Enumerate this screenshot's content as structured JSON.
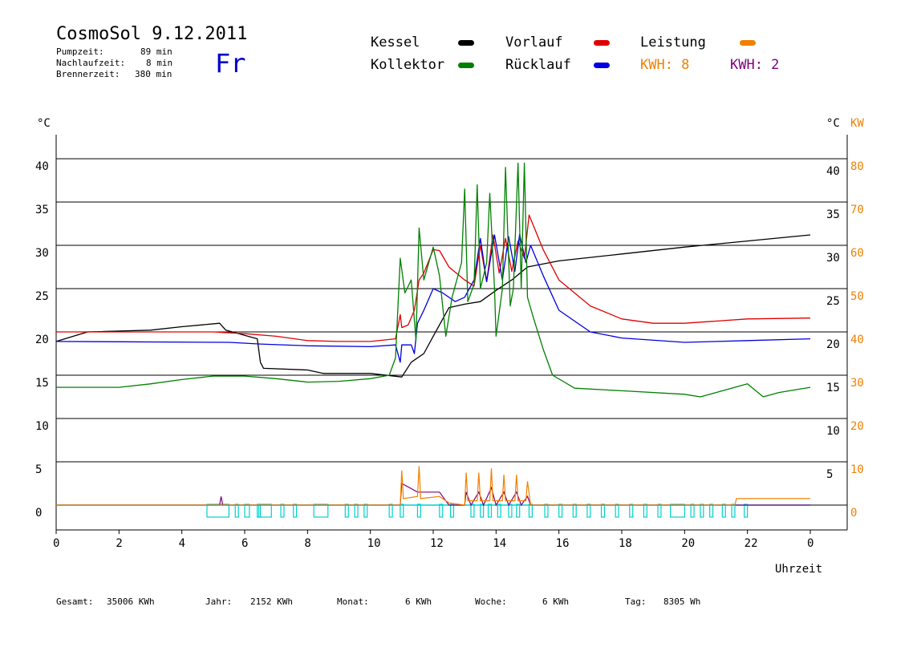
{
  "header": {
    "title": "CosmoSol 9.12.2011",
    "day": "Fr",
    "info": [
      {
        "label": "Pumpzeit:",
        "value": "89 min"
      },
      {
        "label": "Nachlaufzeit:",
        "value": "8 min"
      },
      {
        "label": "Brennerzeit:",
        "value": "380 min"
      }
    ]
  },
  "legend": {
    "kessel": {
      "label": "Kessel",
      "color": "#000000"
    },
    "vorlauf": {
      "label": "Vorlauf",
      "color": "#e00000"
    },
    "leistung": {
      "label": "Leistung",
      "color": "#f08000"
    },
    "kollektor": {
      "label": "Kollektor",
      "color": "#008000"
    },
    "ruecklauf": {
      "label": "Rücklauf",
      "color": "#0000e0"
    },
    "kwh1": {
      "label": "KWH: 8",
      "color": "#f08000"
    },
    "kwh2": {
      "label": "KWH: 2",
      "color": "#800080"
    }
  },
  "stats": [
    {
      "label": "Gesamt:",
      "value": "35006 KWh"
    },
    {
      "label": "Jahr:",
      "value": "2152 KWh"
    },
    {
      "label": "Monat:",
      "value": "6 KWh"
    },
    {
      "label": "Woche:",
      "value": "6 KWh"
    },
    {
      "label": "Tag:",
      "value": "8305 Wh"
    }
  ],
  "chart_data": {
    "type": "line",
    "xlabel": "Uhrzeit",
    "ylabel_left": "°C",
    "ylabel_right": [
      "°C",
      "KW"
    ],
    "xlim": [
      0,
      24
    ],
    "ylim": [
      -3,
      43
    ],
    "xticks": [
      "0",
      "2",
      "4",
      "6",
      "8",
      "10",
      "12",
      "14",
      "16",
      "18",
      "20",
      "22",
      "0"
    ],
    "yticks_left": [
      0,
      5,
      10,
      15,
      20,
      25,
      30,
      35,
      40
    ],
    "yticks_right_temp": [
      5,
      10,
      15,
      20,
      25,
      30,
      35,
      40
    ],
    "yticks_right_kw": [
      0,
      10,
      20,
      30,
      40,
      50,
      60,
      70,
      80
    ],
    "grid": "horizontal",
    "series": [
      {
        "name": "Kessel",
        "color": "#000000",
        "points": [
          [
            0,
            18.9
          ],
          [
            1,
            20.0
          ],
          [
            3,
            20.2
          ],
          [
            4,
            20.6
          ],
          [
            5.2,
            21.0
          ],
          [
            5.4,
            20.2
          ],
          [
            6.4,
            19.2
          ],
          [
            6.5,
            16.5
          ],
          [
            6.6,
            15.8
          ],
          [
            8,
            15.6
          ],
          [
            8.5,
            15.2
          ],
          [
            10,
            15.2
          ],
          [
            11.0,
            14.8
          ],
          [
            11.3,
            16.5
          ],
          [
            11.7,
            17.5
          ],
          [
            12,
            19.5
          ],
          [
            12.5,
            22.8
          ],
          [
            13,
            23.2
          ],
          [
            13.5,
            23.5
          ],
          [
            14,
            24.8
          ],
          [
            14.5,
            26.0
          ],
          [
            15,
            27.5
          ],
          [
            16,
            28.2
          ],
          [
            18,
            29.0
          ],
          [
            20,
            29.8
          ],
          [
            22,
            30.5
          ],
          [
            24,
            31.2
          ]
        ]
      },
      {
        "name": "Vorlauf",
        "color": "#e00000",
        "points": [
          [
            0,
            20.0
          ],
          [
            5,
            20.0
          ],
          [
            6,
            19.8
          ],
          [
            7,
            19.5
          ],
          [
            8,
            19.0
          ],
          [
            9,
            18.9
          ],
          [
            10,
            18.9
          ],
          [
            10.8,
            19.2
          ],
          [
            10.95,
            22.0
          ],
          [
            11.0,
            20.5
          ],
          [
            11.2,
            20.8
          ],
          [
            11.4,
            22.5
          ],
          [
            11.55,
            26.0
          ],
          [
            11.7,
            26.8
          ],
          [
            12,
            29.5
          ],
          [
            12.2,
            29.4
          ],
          [
            12.5,
            27.5
          ],
          [
            13,
            26.0
          ],
          [
            13.3,
            25.3
          ],
          [
            13.5,
            30.0
          ],
          [
            13.7,
            25.8
          ],
          [
            13.9,
            31.2
          ],
          [
            14.1,
            26.8
          ],
          [
            14.3,
            30.8
          ],
          [
            14.5,
            27.0
          ],
          [
            14.7,
            30.5
          ],
          [
            14.9,
            28.5
          ],
          [
            15.05,
            33.5
          ],
          [
            15.5,
            29.5
          ],
          [
            16,
            26.0
          ],
          [
            17,
            23.0
          ],
          [
            18,
            21.5
          ],
          [
            19,
            21.0
          ],
          [
            20,
            21.0
          ],
          [
            22,
            21.5
          ],
          [
            24,
            21.6
          ]
        ]
      },
      {
        "name": "Rücklauf",
        "color": "#0000e0",
        "points": [
          [
            0,
            18.9
          ],
          [
            5.5,
            18.8
          ],
          [
            6.5,
            18.6
          ],
          [
            8,
            18.4
          ],
          [
            10,
            18.3
          ],
          [
            10.8,
            18.5
          ],
          [
            10.95,
            16.5
          ],
          [
            11.0,
            18.5
          ],
          [
            11.3,
            18.5
          ],
          [
            11.4,
            17.5
          ],
          [
            11.5,
            21.0
          ],
          [
            11.7,
            22.5
          ],
          [
            12,
            25.0
          ],
          [
            12.3,
            24.5
          ],
          [
            12.7,
            23.5
          ],
          [
            13.0,
            24.0
          ],
          [
            13.3,
            26.0
          ],
          [
            13.5,
            30.8
          ],
          [
            13.7,
            25.8
          ],
          [
            13.95,
            31.2
          ],
          [
            14.2,
            26.0
          ],
          [
            14.4,
            31.0
          ],
          [
            14.6,
            27.0
          ],
          [
            14.75,
            31.3
          ],
          [
            14.95,
            28.0
          ],
          [
            15.1,
            30.0
          ],
          [
            15.5,
            26.5
          ],
          [
            16,
            22.5
          ],
          [
            17,
            20.0
          ],
          [
            18,
            19.3
          ],
          [
            20,
            18.8
          ],
          [
            22,
            19.0
          ],
          [
            24,
            19.2
          ]
        ]
      },
      {
        "name": "Kollektor",
        "color": "#008000",
        "points": [
          [
            0,
            13.6
          ],
          [
            1,
            13.6
          ],
          [
            2,
            13.6
          ],
          [
            3,
            14.0
          ],
          [
            4,
            14.5
          ],
          [
            5,
            14.9
          ],
          [
            6,
            14.9
          ],
          [
            7,
            14.6
          ],
          [
            8,
            14.2
          ],
          [
            9,
            14.3
          ],
          [
            10,
            14.6
          ],
          [
            10.6,
            15.0
          ],
          [
            10.8,
            17.0
          ],
          [
            10.95,
            28.5
          ],
          [
            11.1,
            24.5
          ],
          [
            11.3,
            26.0
          ],
          [
            11.45,
            19.0
          ],
          [
            11.55,
            32.0
          ],
          [
            11.7,
            26.0
          ],
          [
            12,
            29.8
          ],
          [
            12.2,
            26.5
          ],
          [
            12.4,
            19.5
          ],
          [
            12.6,
            24.0
          ],
          [
            12.9,
            28.0
          ],
          [
            13.0,
            36.5
          ],
          [
            13.1,
            23.5
          ],
          [
            13.3,
            25.5
          ],
          [
            13.4,
            37.0
          ],
          [
            13.5,
            25.0
          ],
          [
            13.7,
            28.0
          ],
          [
            13.8,
            36.0
          ],
          [
            13.95,
            25.0
          ],
          [
            14.0,
            19.5
          ],
          [
            14.2,
            25.0
          ],
          [
            14.3,
            39.0
          ],
          [
            14.45,
            23.0
          ],
          [
            14.55,
            25.0
          ],
          [
            14.7,
            39.5
          ],
          [
            14.8,
            25.0
          ],
          [
            14.9,
            39.5
          ],
          [
            15.0,
            24.0
          ],
          [
            15.2,
            21.5
          ],
          [
            15.5,
            18.0
          ],
          [
            15.8,
            15.0
          ],
          [
            16.5,
            13.5
          ],
          [
            18,
            13.2
          ],
          [
            20,
            12.8
          ],
          [
            20.5,
            12.5
          ],
          [
            21,
            13.0
          ],
          [
            22,
            14.0
          ],
          [
            22.5,
            12.5
          ],
          [
            23,
            13.0
          ],
          [
            24,
            13.6
          ]
        ]
      }
    ],
    "power_kw": {
      "name": "Leistung",
      "color": "#f08000",
      "points": [
        [
          0,
          0
        ],
        [
          10.95,
          0
        ],
        [
          11.0,
          8.0
        ],
        [
          11.05,
          1.5
        ],
        [
          11.5,
          2.0
        ],
        [
          11.55,
          9.0
        ],
        [
          11.6,
          1.5
        ],
        [
          12.2,
          2.0
        ],
        [
          12.5,
          0.5
        ],
        [
          13.0,
          0
        ],
        [
          13.05,
          7.5
        ],
        [
          13.1,
          1.0
        ],
        [
          13.4,
          1.0
        ],
        [
          13.45,
          7.5
        ],
        [
          13.5,
          1.0
        ],
        [
          13.8,
          1.0
        ],
        [
          13.85,
          8.5
        ],
        [
          13.9,
          1.0
        ],
        [
          14.2,
          1.0
        ],
        [
          14.25,
          7.0
        ],
        [
          14.3,
          1.0
        ],
        [
          14.6,
          1.0
        ],
        [
          14.65,
          7.0
        ],
        [
          14.7,
          1.0
        ],
        [
          14.95,
          1.0
        ],
        [
          15.0,
          5.5
        ],
        [
          15.1,
          0
        ],
        [
          21.6,
          0
        ],
        [
          21.65,
          1.5
        ],
        [
          24,
          1.5
        ]
      ]
    },
    "energy_kwh": {
      "name": "KWH",
      "color": "#800080",
      "points": [
        [
          0,
          0
        ],
        [
          5.2,
          0
        ],
        [
          5.25,
          1.0
        ],
        [
          5.3,
          0
        ],
        [
          10.95,
          0
        ],
        [
          11.0,
          2.5
        ],
        [
          11.5,
          1.5
        ],
        [
          12.2,
          1.5
        ],
        [
          12.5,
          0
        ],
        [
          13.0,
          0
        ],
        [
          13.05,
          1.5
        ],
        [
          13.2,
          0
        ],
        [
          13.45,
          1.5
        ],
        [
          13.6,
          0
        ],
        [
          13.85,
          2.0
        ],
        [
          14.0,
          0
        ],
        [
          14.25,
          1.5
        ],
        [
          14.4,
          0
        ],
        [
          14.65,
          1.5
        ],
        [
          14.8,
          0
        ],
        [
          15.0,
          1.0
        ],
        [
          15.1,
          0
        ],
        [
          24,
          0
        ]
      ]
    },
    "pump_status": {
      "color": "#00d0d0",
      "on_intervals": [
        [
          4.8,
          5.5
        ],
        [
          5.7,
          5.8
        ],
        [
          6.0,
          6.15
        ],
        [
          6.4,
          6.5
        ],
        [
          6.45,
          6.85
        ],
        [
          7.15,
          7.25
        ],
        [
          7.55,
          7.65
        ],
        [
          8.2,
          8.65
        ],
        [
          9.2,
          9.3
        ],
        [
          9.5,
          9.6
        ],
        [
          9.8,
          9.9
        ],
        [
          10.6,
          10.7
        ],
        [
          10.95,
          11.05
        ],
        [
          11.5,
          11.6
        ],
        [
          12.2,
          12.3
        ],
        [
          12.55,
          12.65
        ],
        [
          13.2,
          13.3
        ],
        [
          13.5,
          13.6
        ],
        [
          13.75,
          13.85
        ],
        [
          14.05,
          14.15
        ],
        [
          14.4,
          14.5
        ],
        [
          14.65,
          14.75
        ],
        [
          15.05,
          15.15
        ],
        [
          15.55,
          15.65
        ],
        [
          16.0,
          16.1
        ],
        [
          16.45,
          16.55
        ],
        [
          16.9,
          17.0
        ],
        [
          17.35,
          17.45
        ],
        [
          17.8,
          17.9
        ],
        [
          18.25,
          18.35
        ],
        [
          18.7,
          18.8
        ],
        [
          19.15,
          19.25
        ],
        [
          19.55,
          20.0
        ],
        [
          20.2,
          20.3
        ],
        [
          20.5,
          20.6
        ],
        [
          20.8,
          20.9
        ],
        [
          21.2,
          21.3
        ],
        [
          21.5,
          21.6
        ],
        [
          21.9,
          22.0
        ]
      ]
    }
  }
}
